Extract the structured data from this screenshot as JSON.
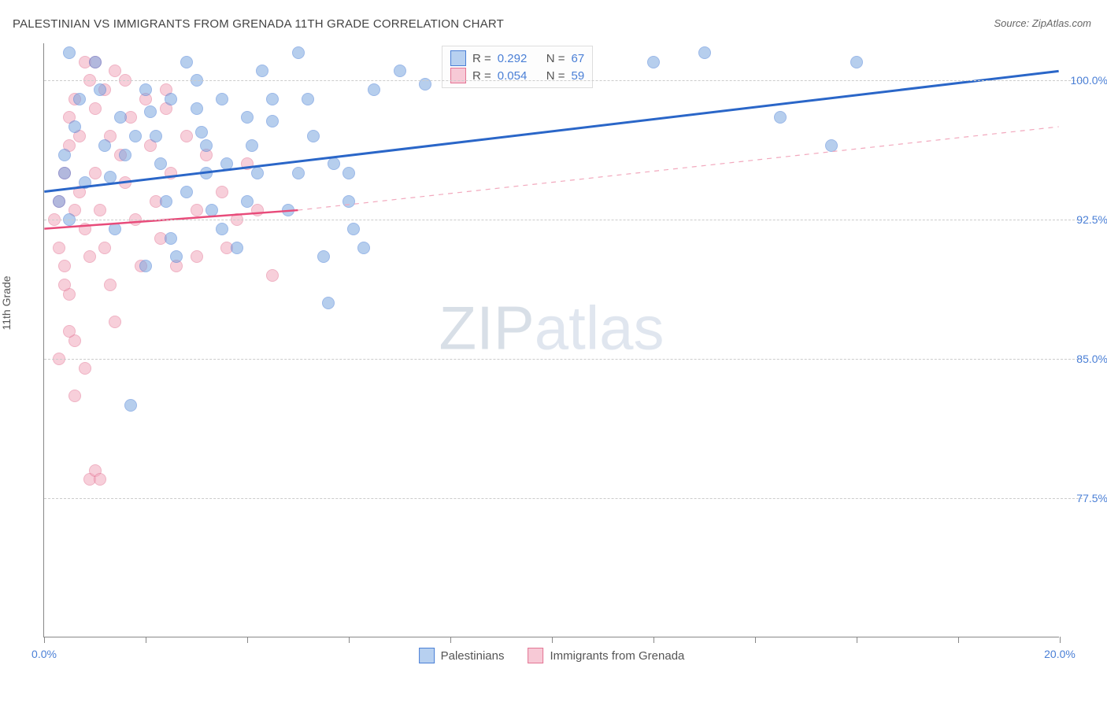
{
  "title": "PALESTINIAN VS IMMIGRANTS FROM GRENADA 11TH GRADE CORRELATION CHART",
  "source": "Source: ZipAtlas.com",
  "yaxis_label": "11th Grade",
  "watermark_a": "ZIP",
  "watermark_b": "atlas",
  "chart": {
    "type": "scatter",
    "xlim": [
      0,
      20
    ],
    "ylim": [
      70,
      102
    ],
    "background_color": "#ffffff",
    "grid_color": "#cccccc",
    "axis_color": "#888888",
    "tick_color": "#4a7fd6",
    "y_gridlines": [
      77.5,
      85.0,
      92.5,
      100.0
    ],
    "y_tick_labels": [
      "77.5%",
      "85.0%",
      "92.5%",
      "100.0%"
    ],
    "x_ticks": [
      0,
      2,
      4,
      6,
      8,
      10,
      12,
      14,
      16,
      18,
      20
    ],
    "x_tick_labels": {
      "0": "0.0%",
      "20": "20.0%"
    },
    "marker_radius": 8,
    "marker_opacity": 0.55,
    "series": [
      {
        "name": "Palestinians",
        "color_fill": "#7ba7e0",
        "color_stroke": "#4a7fd6",
        "legend_color_fill": "#b7d0f0",
        "legend_color_stroke": "#4a7fd6",
        "r": 0.292,
        "n": 67,
        "trend": {
          "x1": 0,
          "y1": 94.0,
          "x2": 20,
          "y2": 100.5,
          "width": 3,
          "color": "#2a66c8",
          "dash": "none"
        },
        "points": [
          [
            0.5,
            101.5
          ],
          [
            0.3,
            93.5
          ],
          [
            0.4,
            95.0
          ],
          [
            0.4,
            96.0
          ],
          [
            0.6,
            97.5
          ],
          [
            0.7,
            99.0
          ],
          [
            0.8,
            94.5
          ],
          [
            0.5,
            92.5
          ],
          [
            1.0,
            101.0
          ],
          [
            1.1,
            99.5
          ],
          [
            1.2,
            96.5
          ],
          [
            1.3,
            94.8
          ],
          [
            1.4,
            92.0
          ],
          [
            1.5,
            98.0
          ],
          [
            1.6,
            96.0
          ],
          [
            1.7,
            82.5
          ],
          [
            2.0,
            99.5
          ],
          [
            2.1,
            98.3
          ],
          [
            2.2,
            97.0
          ],
          [
            2.3,
            95.5
          ],
          [
            2.4,
            93.5
          ],
          [
            2.5,
            91.5
          ],
          [
            2.6,
            90.5
          ],
          [
            2.8,
            101.0
          ],
          [
            3.0,
            98.5
          ],
          [
            3.1,
            97.2
          ],
          [
            3.2,
            95.0
          ],
          [
            3.3,
            93.0
          ],
          [
            3.5,
            99.0
          ],
          [
            3.6,
            95.5
          ],
          [
            3.8,
            91.0
          ],
          [
            4.0,
            98.0
          ],
          [
            4.1,
            96.5
          ],
          [
            4.2,
            95.0
          ],
          [
            4.3,
            100.5
          ],
          [
            4.5,
            97.8
          ],
          [
            4.8,
            93.0
          ],
          [
            5.0,
            101.5
          ],
          [
            5.2,
            99.0
          ],
          [
            5.3,
            97.0
          ],
          [
            5.5,
            90.5
          ],
          [
            5.7,
            95.5
          ],
          [
            5.6,
            88.0
          ],
          [
            6.0,
            93.5
          ],
          [
            6.1,
            92.0
          ],
          [
            6.3,
            91.0
          ],
          [
            6.5,
            99.5
          ],
          [
            7.0,
            100.5
          ],
          [
            7.5,
            99.8
          ],
          [
            8.0,
            101.5
          ],
          [
            8.3,
            100.0
          ],
          [
            12.0,
            101.0
          ],
          [
            13.0,
            101.5
          ],
          [
            14.5,
            98.0
          ],
          [
            15.5,
            96.5
          ],
          [
            16.0,
            101.0
          ],
          [
            6.0,
            95.0
          ],
          [
            4.5,
            99.0
          ],
          [
            3.0,
            100.0
          ],
          [
            2.5,
            99.0
          ],
          [
            1.8,
            97.0
          ],
          [
            2.8,
            94.0
          ],
          [
            3.2,
            96.5
          ],
          [
            5.0,
            95.0
          ],
          [
            4.0,
            93.5
          ],
          [
            3.5,
            92.0
          ],
          [
            2.0,
            90.0
          ]
        ]
      },
      {
        "name": "Immigrants from Grenada",
        "color_fill": "#f2a8bd",
        "color_stroke": "#e37594",
        "legend_color_fill": "#f7c9d6",
        "legend_color_stroke": "#e37594",
        "r": 0.054,
        "n": 59,
        "trend_solid": {
          "x1": 0,
          "y1": 92.0,
          "x2": 5,
          "y2": 93.0,
          "width": 2.5,
          "color": "#e84b7a"
        },
        "trend_dash": {
          "x1": 5,
          "y1": 93.0,
          "x2": 20,
          "y2": 97.5,
          "width": 1.2,
          "color": "#f2a8bd",
          "dash": "6,6"
        },
        "points": [
          [
            0.2,
            92.5
          ],
          [
            0.3,
            91.0
          ],
          [
            0.3,
            93.5
          ],
          [
            0.4,
            95.0
          ],
          [
            0.4,
            90.0
          ],
          [
            0.5,
            98.0
          ],
          [
            0.5,
            96.5
          ],
          [
            0.5,
            88.5
          ],
          [
            0.6,
            99.0
          ],
          [
            0.6,
            86.0
          ],
          [
            0.7,
            97.0
          ],
          [
            0.7,
            94.0
          ],
          [
            0.8,
            101.0
          ],
          [
            0.8,
            92.0
          ],
          [
            0.8,
            84.5
          ],
          [
            0.9,
            100.0
          ],
          [
            0.9,
            90.5
          ],
          [
            1.0,
            98.5
          ],
          [
            1.0,
            95.0
          ],
          [
            1.1,
            93.0
          ],
          [
            1.2,
            99.5
          ],
          [
            1.2,
            91.0
          ],
          [
            1.3,
            97.0
          ],
          [
            1.3,
            89.0
          ],
          [
            1.4,
            100.5
          ],
          [
            1.4,
            87.0
          ],
          [
            1.5,
            96.0
          ],
          [
            1.6,
            94.5
          ],
          [
            1.7,
            98.0
          ],
          [
            1.8,
            92.5
          ],
          [
            1.9,
            90.0
          ],
          [
            2.0,
            99.0
          ],
          [
            2.1,
            96.5
          ],
          [
            2.2,
            93.5
          ],
          [
            2.3,
            91.5
          ],
          [
            2.4,
            98.5
          ],
          [
            2.5,
            95.0
          ],
          [
            2.6,
            90.0
          ],
          [
            2.8,
            97.0
          ],
          [
            3.0,
            93.0
          ],
          [
            3.0,
            90.5
          ],
          [
            3.2,
            96.0
          ],
          [
            3.5,
            94.0
          ],
          [
            3.6,
            91.0
          ],
          [
            3.8,
            92.5
          ],
          [
            4.0,
            95.5
          ],
          [
            4.2,
            93.0
          ],
          [
            4.5,
            89.5
          ],
          [
            0.3,
            85.0
          ],
          [
            0.5,
            86.5
          ],
          [
            0.6,
            83.0
          ],
          [
            0.9,
            78.5
          ],
          [
            1.0,
            79.0
          ],
          [
            1.1,
            78.5
          ],
          [
            2.4,
            99.5
          ],
          [
            1.6,
            100.0
          ],
          [
            1.0,
            101.0
          ],
          [
            0.6,
            93.0
          ],
          [
            0.4,
            89.0
          ]
        ]
      }
    ],
    "legend_top": {
      "rows": [
        {
          "swatch_fill": "#b7d0f0",
          "swatch_stroke": "#4a7fd6",
          "r_label": "R =",
          "r_val": "0.292",
          "n_label": "N =",
          "n_val": "67"
        },
        {
          "swatch_fill": "#f7c9d6",
          "swatch_stroke": "#e37594",
          "r_label": "R =",
          "r_val": "0.054",
          "n_label": "N =",
          "n_val": "59"
        }
      ]
    },
    "legend_bottom": [
      {
        "swatch_fill": "#b7d0f0",
        "swatch_stroke": "#4a7fd6",
        "label": "Palestinians"
      },
      {
        "swatch_fill": "#f7c9d6",
        "swatch_stroke": "#e37594",
        "label": "Immigrants from Grenada"
      }
    ]
  }
}
